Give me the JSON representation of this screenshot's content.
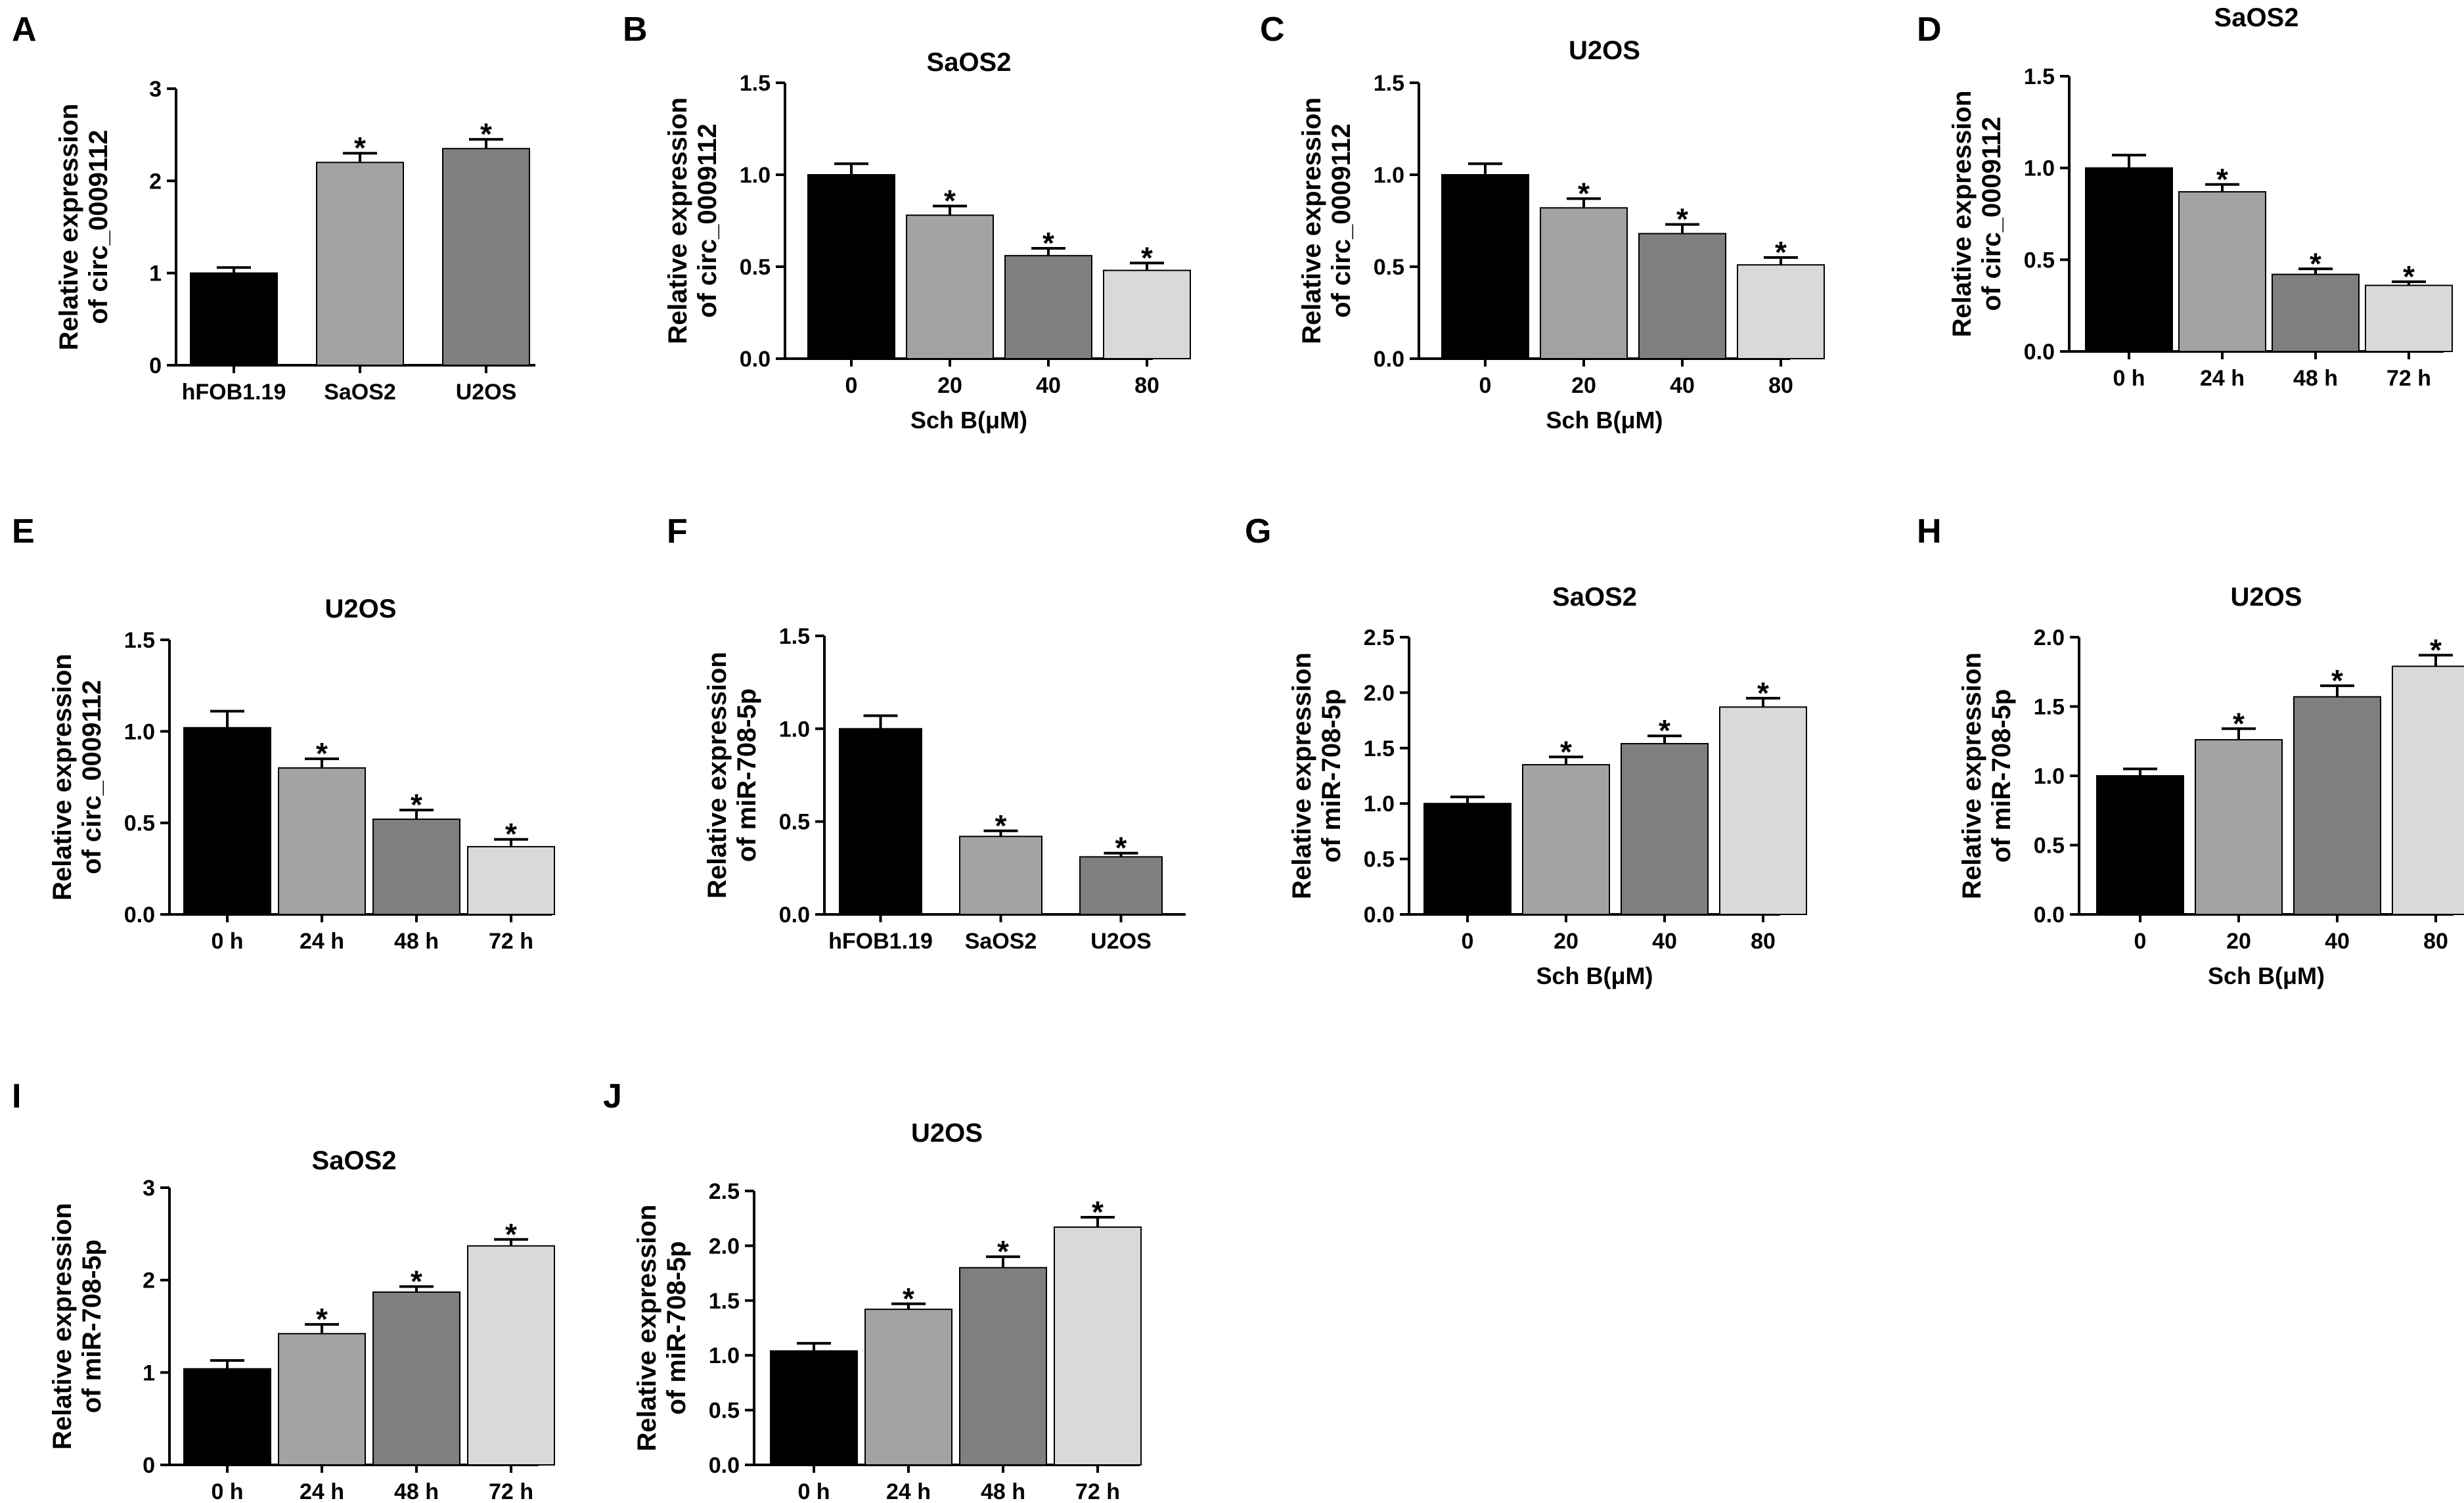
{
  "figure": {
    "colors": {
      "black": "#000000",
      "light_gray": "#a3a3a6",
      "mid_gray": "#7f7f7f",
      "pale_gray": "#d9d9d9"
    }
  },
  "chart_data": [
    {
      "panel": "A",
      "type": "bar",
      "title": "",
      "ylabel_lines": [
        "Relative expression",
        "of circ_0009112"
      ],
      "xlabel": "",
      "categories": [
        "hFOB1.19",
        "SaOS2",
        "U2OS"
      ],
      "values": [
        1.0,
        2.2,
        2.35
      ],
      "errors": [
        0.06,
        0.1,
        0.1
      ],
      "significance": [
        "",
        "*",
        "*"
      ],
      "colors": [
        "#000000",
        "#a3a3a6",
        "#7f7f7f"
      ],
      "ylim": [
        0,
        3
      ],
      "yticks": [
        "0",
        "1",
        "2",
        "3"
      ]
    },
    {
      "panel": "B",
      "type": "bar",
      "title": "SaOS2",
      "ylabel_lines": [
        "Relative expression",
        "of circ_0009112"
      ],
      "xlabel": "Sch B(μM)",
      "categories": [
        "0",
        "20",
        "40",
        "80"
      ],
      "values": [
        1.0,
        0.78,
        0.56,
        0.48
      ],
      "errors": [
        0.06,
        0.05,
        0.04,
        0.04
      ],
      "significance": [
        "",
        "*",
        "*",
        "*"
      ],
      "colors": [
        "#000000",
        "#a3a3a6",
        "#7f7f7f",
        "#d9d9d9"
      ],
      "ylim": [
        0,
        1.5
      ],
      "yticks": [
        "0.0",
        "0.5",
        "1.0",
        "1.5"
      ]
    },
    {
      "panel": "C",
      "type": "bar",
      "title": "U2OS",
      "ylabel_lines": [
        "Relative expression",
        "of circ_0009112"
      ],
      "xlabel": "Sch B(μM)",
      "categories": [
        "0",
        "20",
        "40",
        "80"
      ],
      "values": [
        1.0,
        0.82,
        0.68,
        0.51
      ],
      "errors": [
        0.06,
        0.05,
        0.05,
        0.04
      ],
      "significance": [
        "",
        "*",
        "*",
        "*"
      ],
      "colors": [
        "#000000",
        "#a3a3a6",
        "#7f7f7f",
        "#d9d9d9"
      ],
      "ylim": [
        0,
        1.5
      ],
      "yticks": [
        "0.0",
        "0.5",
        "1.0",
        "1.5"
      ]
    },
    {
      "panel": "D",
      "type": "bar",
      "title": "SaOS2",
      "ylabel_lines": [
        "Relative expression",
        "of circ_0009112"
      ],
      "xlabel": "",
      "categories": [
        "0 h",
        "24 h",
        "48 h",
        "72 h"
      ],
      "values": [
        1.0,
        0.87,
        0.42,
        0.36
      ],
      "errors": [
        0.07,
        0.04,
        0.03,
        0.02
      ],
      "significance": [
        "",
        "*",
        "*",
        "*"
      ],
      "colors": [
        "#000000",
        "#a3a3a6",
        "#7f7f7f",
        "#d9d9d9"
      ],
      "ylim": [
        0,
        1.5
      ],
      "yticks": [
        "0.0",
        "0.5",
        "1.0",
        "1.5"
      ]
    },
    {
      "panel": "E",
      "type": "bar",
      "title": "U2OS",
      "ylabel_lines": [
        "Relative expression",
        "of circ_0009112"
      ],
      "xlabel": "",
      "categories": [
        "0 h",
        "24 h",
        "48 h",
        "72 h"
      ],
      "values": [
        1.02,
        0.8,
        0.52,
        0.37
      ],
      "errors": [
        0.09,
        0.05,
        0.05,
        0.04
      ],
      "significance": [
        "",
        "*",
        "*",
        "*"
      ],
      "colors": [
        "#000000",
        "#a3a3a6",
        "#7f7f7f",
        "#d9d9d9"
      ],
      "ylim": [
        0,
        1.5
      ],
      "yticks": [
        "0.0",
        "0.5",
        "1.0",
        "1.5"
      ]
    },
    {
      "panel": "F",
      "type": "bar",
      "title": "",
      "ylabel_lines": [
        "Relative expression",
        "of miR-708-5p"
      ],
      "xlabel": "",
      "categories": [
        "hFOB1.19",
        "SaOS2",
        "U2OS"
      ],
      "values": [
        1.0,
        0.42,
        0.31
      ],
      "errors": [
        0.07,
        0.03,
        0.02
      ],
      "significance": [
        "",
        "*",
        "*"
      ],
      "colors": [
        "#000000",
        "#a3a3a6",
        "#7f7f7f"
      ],
      "ylim": [
        0,
        1.5
      ],
      "yticks": [
        "0.0",
        "0.5",
        "1.0",
        "1.5"
      ]
    },
    {
      "panel": "G",
      "type": "bar",
      "title": "SaOS2",
      "ylabel_lines": [
        "Relative expression",
        "of miR-708-5p"
      ],
      "xlabel": "Sch B(μM)",
      "categories": [
        "0",
        "20",
        "40",
        "80"
      ],
      "values": [
        1.0,
        1.35,
        1.54,
        1.87
      ],
      "errors": [
        0.06,
        0.07,
        0.07,
        0.08
      ],
      "significance": [
        "",
        "*",
        "*",
        "*"
      ],
      "colors": [
        "#000000",
        "#a3a3a6",
        "#7f7f7f",
        "#d9d9d9"
      ],
      "ylim": [
        0,
        2.5
      ],
      "yticks": [
        "0.0",
        "0.5",
        "1.0",
        "1.5",
        "2.0",
        "2.5"
      ]
    },
    {
      "panel": "H",
      "type": "bar",
      "title": "U2OS",
      "ylabel_lines": [
        "Relative expression",
        "of miR-708-5p"
      ],
      "xlabel": "Sch B(μM)",
      "categories": [
        "0",
        "20",
        "40",
        "80"
      ],
      "values": [
        1.0,
        1.26,
        1.57,
        1.79
      ],
      "errors": [
        0.05,
        0.08,
        0.08,
        0.08
      ],
      "significance": [
        "",
        "*",
        "*",
        "*"
      ],
      "colors": [
        "#000000",
        "#a3a3a6",
        "#7f7f7f",
        "#d9d9d9"
      ],
      "ylim": [
        0,
        2.0
      ],
      "yticks": [
        "0.0",
        "0.5",
        "1.0",
        "1.5",
        "2.0"
      ]
    },
    {
      "panel": "I",
      "type": "bar",
      "title": "SaOS2",
      "ylabel_lines": [
        "Relative expression",
        "of miR-708-5p"
      ],
      "xlabel": "",
      "categories": [
        "0 h",
        "24 h",
        "48 h",
        "72 h"
      ],
      "values": [
        1.04,
        1.42,
        1.87,
        2.37
      ],
      "errors": [
        0.09,
        0.1,
        0.06,
        0.07
      ],
      "significance": [
        "",
        "*",
        "*",
        "*"
      ],
      "colors": [
        "#000000",
        "#a3a3a6",
        "#7f7f7f",
        "#d9d9d9"
      ],
      "ylim": [
        0,
        3
      ],
      "yticks": [
        "0",
        "1",
        "2",
        "3"
      ]
    },
    {
      "panel": "J",
      "type": "bar",
      "title": "U2OS",
      "ylabel_lines": [
        "Relative expression",
        "of miR-708-5p"
      ],
      "xlabel": "",
      "categories": [
        "0 h",
        "24 h",
        "48 h",
        "72 h"
      ],
      "values": [
        1.04,
        1.42,
        1.8,
        2.17
      ],
      "errors": [
        0.07,
        0.05,
        0.1,
        0.09
      ],
      "significance": [
        "",
        "*",
        "*",
        "*"
      ],
      "colors": [
        "#000000",
        "#a3a3a6",
        "#7f7f7f",
        "#d9d9d9"
      ],
      "ylim": [
        0,
        2.5
      ],
      "yticks": [
        "0.0",
        "0.5",
        "1.0",
        "1.5",
        "2.0",
        "2.5"
      ]
    }
  ]
}
